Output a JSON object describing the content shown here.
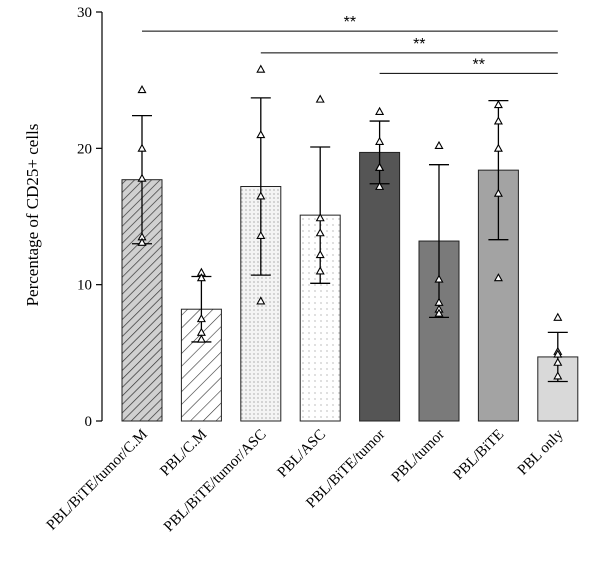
{
  "chart_data": {
    "type": "bar",
    "ylabel": "Percentage of CD25+ cells",
    "ylim": [
      0,
      30
    ],
    "yticks": [
      0,
      10,
      20,
      30
    ],
    "categories": [
      "PBL/BiTE/tumor/C.M",
      "PBL/C.M",
      "PBL/BiTE/tumor/ASC",
      "PBL/ASC",
      "PBL/BiTE/tumor",
      "PBL/tumor",
      "PBL/BiTE",
      "PBL only"
    ],
    "values": [
      17.7,
      8.2,
      17.2,
      15.1,
      19.7,
      13.2,
      18.4,
      4.7
    ],
    "sd": [
      4.7,
      2.4,
      6.5,
      5.0,
      2.3,
      5.6,
      5.1,
      1.8
    ],
    "points": [
      [
        24.3,
        20.0,
        17.8,
        13.5,
        13.1
      ],
      [
        10.9,
        10.5,
        7.5,
        6.5,
        6.0
      ],
      [
        25.8,
        21.0,
        16.5,
        13.6,
        8.8
      ],
      [
        23.6,
        14.9,
        13.8,
        12.2,
        11.0
      ],
      [
        22.7,
        20.5,
        18.6,
        18.6,
        17.2
      ],
      [
        20.2,
        10.4,
        8.7,
        8.2,
        7.9
      ],
      [
        23.2,
        22.0,
        20.0,
        16.7,
        10.5
      ],
      [
        7.6,
        5.1,
        4.9,
        4.3,
        3.3
      ]
    ],
    "fills": [
      "hatch-dense",
      "hatch-sparse",
      "dots-light",
      "dots-sparse",
      "#555555",
      "#7a7a7a",
      "#a3a3a3",
      "#d9d9d9"
    ],
    "significance": [
      {
        "from": 0,
        "to": 7,
        "label": "**",
        "y": 28.6
      },
      {
        "from": 2,
        "to": 7,
        "label": "**",
        "y": 27.0
      },
      {
        "from": 4,
        "to": 7,
        "label": "**",
        "y": 25.5
      }
    ],
    "grid": false,
    "legend": "none"
  }
}
